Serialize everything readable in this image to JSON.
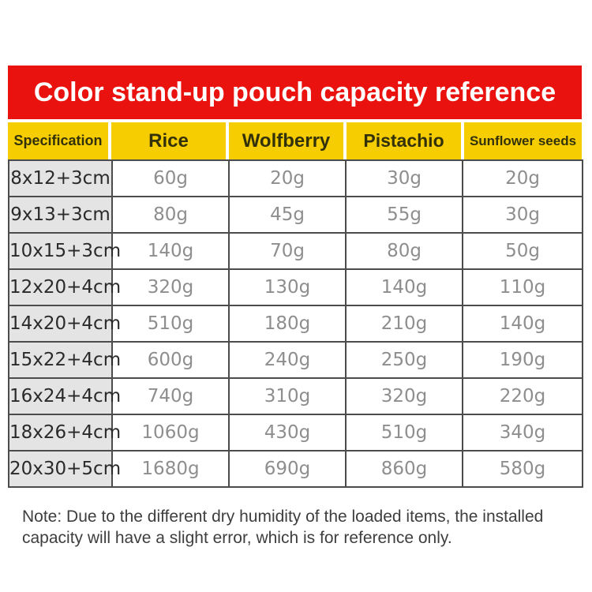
{
  "banner": {
    "title": "Color stand-up pouch capacity reference"
  },
  "colors": {
    "banner_bg": "#ea120e",
    "banner_text": "#ffffff",
    "header_bg": "#f5cd00",
    "header_text": "#33310a",
    "table_border": "#4c4c4c",
    "spec_cell_bg": "#e4e4e4",
    "spec_text": "#2a2a2a",
    "value_text": "#8e8e8e",
    "note_text": "#3e3e3e"
  },
  "table": {
    "columns": [
      "Specification",
      "Rice",
      "Wolfberry",
      "Pistachio",
      "Sunflower seeds"
    ],
    "rows": [
      {
        "spec": "8x12+3cm",
        "values": [
          "60g",
          "20g",
          "30g",
          "20g"
        ]
      },
      {
        "spec": "9x13+3cm",
        "values": [
          "80g",
          "45g",
          "55g",
          "30g"
        ]
      },
      {
        "spec": "10x15+3cm",
        "values": [
          "140g",
          "70g",
          "80g",
          "50g"
        ]
      },
      {
        "spec": "12x20+4cm",
        "values": [
          "320g",
          "130g",
          "140g",
          "110g"
        ]
      },
      {
        "spec": "14x20+4cm",
        "values": [
          "510g",
          "180g",
          "210g",
          "140g"
        ]
      },
      {
        "spec": "15x22+4cm",
        "values": [
          "600g",
          "240g",
          "250g",
          "190g"
        ]
      },
      {
        "spec": "16x24+4cm",
        "values": [
          "740g",
          "310g",
          "320g",
          "220g"
        ]
      },
      {
        "spec": "18x26+4cm",
        "values": [
          "1060g",
          "430g",
          "510g",
          "340g"
        ]
      },
      {
        "spec": "20x30+5cm",
        "values": [
          "1680g",
          "690g",
          "860g",
          "580g"
        ]
      }
    ]
  },
  "note": {
    "lines": [
      "Note: Due to the different dry humidity of the loaded items, the installed",
      "capacity will have a slight error, which is for reference only."
    ]
  },
  "chart_data": {
    "type": "table",
    "title": "Color stand-up pouch capacity reference",
    "categories": [
      "8x12+3cm",
      "9x13+3cm",
      "10x15+3cm",
      "12x20+4cm",
      "14x20+4cm",
      "15x22+4cm",
      "16x24+4cm",
      "18x26+4cm",
      "20x30+5cm"
    ],
    "series": [
      {
        "name": "Rice",
        "values": [
          60,
          80,
          140,
          320,
          510,
          600,
          740,
          1060,
          1680
        ]
      },
      {
        "name": "Wolfberry",
        "values": [
          20,
          45,
          70,
          130,
          180,
          240,
          310,
          430,
          690
        ]
      },
      {
        "name": "Pistachio",
        "values": [
          30,
          55,
          80,
          140,
          210,
          250,
          320,
          510,
          860
        ]
      },
      {
        "name": "Sunflower seeds",
        "values": [
          20,
          30,
          50,
          110,
          140,
          190,
          220,
          340,
          580
        ]
      }
    ],
    "unit": "g",
    "xlabel": "Specification",
    "note": "Note: Due to the different dry humidity of the loaded items, the installed capacity will have a slight error, which is for reference only."
  }
}
